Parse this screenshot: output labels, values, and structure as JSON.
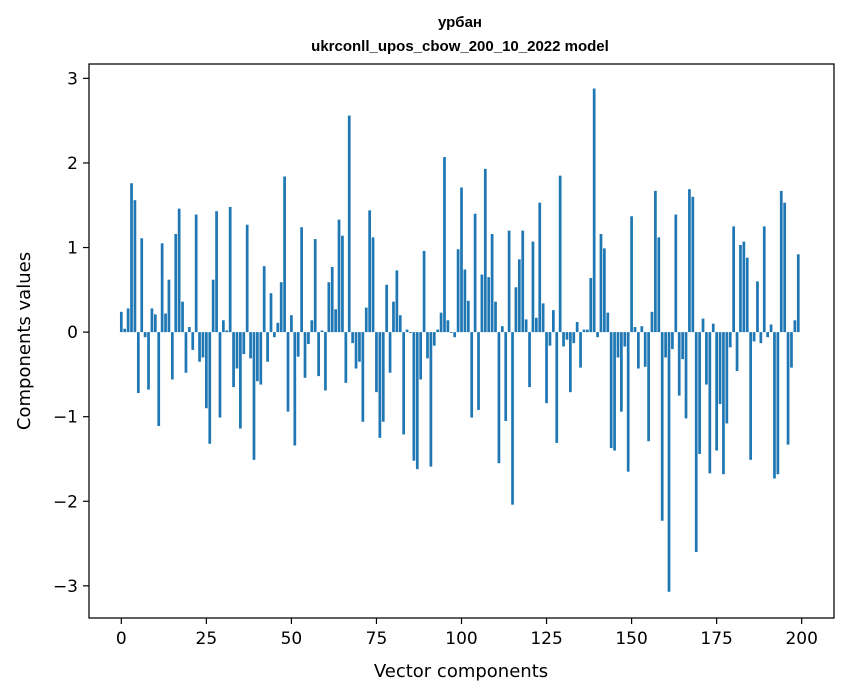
{
  "chart_data": {
    "type": "bar",
    "title": "урбан",
    "subtitle": "ukrconll_upos_cbow_200_10_2022 model",
    "xlabel": "Vector components",
    "ylabel": "Components values",
    "xlim": [
      -9.5,
      209.5
    ],
    "ylim": [
      -3.38,
      3.17
    ],
    "xticks": [
      0,
      25,
      50,
      75,
      100,
      125,
      150,
      175,
      200
    ],
    "yticks": [
      -3,
      -2,
      -1,
      0,
      1,
      2,
      3
    ],
    "xtick_labels": [
      "0",
      "25",
      "50",
      "75",
      "100",
      "125",
      "150",
      "175",
      "200"
    ],
    "ytick_labels": [
      "−3",
      "−2",
      "−1",
      "0",
      "1",
      "2",
      "3"
    ],
    "bar_color": "#1f77b4",
    "grid": false,
    "x": [
      0,
      1,
      2,
      3,
      4,
      5,
      6,
      7,
      8,
      9,
      10,
      11,
      12,
      13,
      14,
      15,
      16,
      17,
      18,
      19,
      20,
      21,
      22,
      23,
      24,
      25,
      26,
      27,
      28,
      29,
      30,
      31,
      32,
      33,
      34,
      35,
      36,
      37,
      38,
      39,
      40,
      41,
      42,
      43,
      44,
      45,
      46,
      47,
      48,
      49,
      50,
      51,
      52,
      53,
      54,
      55,
      56,
      57,
      58,
      59,
      60,
      61,
      62,
      63,
      64,
      65,
      66,
      67,
      68,
      69,
      70,
      71,
      72,
      73,
      74,
      75,
      76,
      77,
      78,
      79,
      80,
      81,
      82,
      83,
      84,
      85,
      86,
      87,
      88,
      89,
      90,
      91,
      92,
      93,
      94,
      95,
      96,
      97,
      98,
      99,
      100,
      101,
      102,
      103,
      104,
      105,
      106,
      107,
      108,
      109,
      110,
      111,
      112,
      113,
      114,
      115,
      116,
      117,
      118,
      119,
      120,
      121,
      122,
      123,
      124,
      125,
      126,
      127,
      128,
      129,
      130,
      131,
      132,
      133,
      134,
      135,
      136,
      137,
      138,
      139,
      140,
      141,
      142,
      143,
      144,
      145,
      146,
      147,
      148,
      149,
      150,
      151,
      152,
      153,
      154,
      155,
      156,
      157,
      158,
      159,
      160,
      161,
      162,
      163,
      164,
      165,
      166,
      167,
      168,
      169,
      170,
      171,
      172,
      173,
      174,
      175,
      176,
      177,
      178,
      179,
      180,
      181,
      182,
      183,
      184,
      185,
      186,
      187,
      188,
      189,
      190,
      191,
      192,
      193,
      194,
      195,
      196,
      197,
      198,
      199
    ],
    "values": [
      0.24,
      0.04,
      0.28,
      1.76,
      1.56,
      -0.72,
      1.11,
      -0.06,
      -0.68,
      0.28,
      0.21,
      -1.11,
      1.05,
      0.22,
      0.62,
      -0.56,
      1.16,
      1.46,
      0.36,
      -0.48,
      0.06,
      -0.21,
      1.39,
      -0.35,
      -0.3,
      -0.9,
      -1.32,
      0.62,
      1.43,
      -1.01,
      0.14,
      0.02,
      1.48,
      -0.65,
      -0.43,
      -1.14,
      -0.26,
      1.27,
      -0.31,
      -1.51,
      -0.58,
      -0.62,
      0.78,
      -0.35,
      0.46,
      -0.06,
      0.11,
      0.59,
      1.84,
      -0.94,
      0.2,
      -1.34,
      -0.29,
      1.24,
      -0.54,
      -0.14,
      0.14,
      1.1,
      -0.52,
      0.02,
      -0.69,
      0.59,
      0.77,
      0.27,
      1.33,
      1.14,
      -0.6,
      2.56,
      -0.13,
      -0.43,
      -0.35,
      -1.06,
      0.29,
      1.44,
      1.12,
      -0.71,
      -1.25,
      -1.06,
      0.56,
      -0.48,
      0.36,
      0.73,
      0.2,
      -1.21,
      0.03,
      -0.01,
      -1.52,
      -1.62,
      -0.56,
      0.96,
      -0.31,
      -1.59,
      -0.16,
      0.03,
      0.23,
      2.07,
      0.14,
      -0.01,
      -0.06,
      0.98,
      1.71,
      0.74,
      0.37,
      -1.01,
      1.4,
      -0.92,
      0.68,
      1.93,
      0.65,
      1.16,
      0.36,
      -1.55,
      0.07,
      -1.05,
      1.2,
      -2.04,
      0.53,
      0.86,
      1.2,
      0.15,
      -0.65,
      1.07,
      0.17,
      1.53,
      0.34,
      -0.84,
      -0.16,
      0.26,
      -1.31,
      1.85,
      -0.17,
      -0.09,
      -0.71,
      -0.13,
      0.12,
      -0.42,
      0.03,
      0.03,
      0.64,
      2.88,
      -0.06,
      1.16,
      0.99,
      0.23,
      -1.37,
      -1.4,
      -0.3,
      -0.94,
      -0.17,
      -1.65,
      1.37,
      0.06,
      -0.43,
      0.07,
      -0.41,
      -1.29,
      0.24,
      1.67,
      1.12,
      -2.23,
      -0.3,
      -3.07,
      -0.2,
      1.39,
      -0.75,
      -0.32,
      -1.02,
      1.69,
      1.6,
      -2.6,
      -1.44,
      0.16,
      -0.62,
      -1.67,
      0.1,
      -1.4,
      -0.85,
      -1.68,
      -1.08,
      -0.18,
      1.25,
      -0.46,
      1.03,
      1.07,
      0.88,
      -1.51,
      -0.11,
      0.6,
      -0.13,
      1.25,
      -0.06,
      0.09,
      -1.73,
      -1.68,
      1.67,
      1.53,
      -1.33,
      -0.42,
      0.14,
      0.92
    ]
  }
}
